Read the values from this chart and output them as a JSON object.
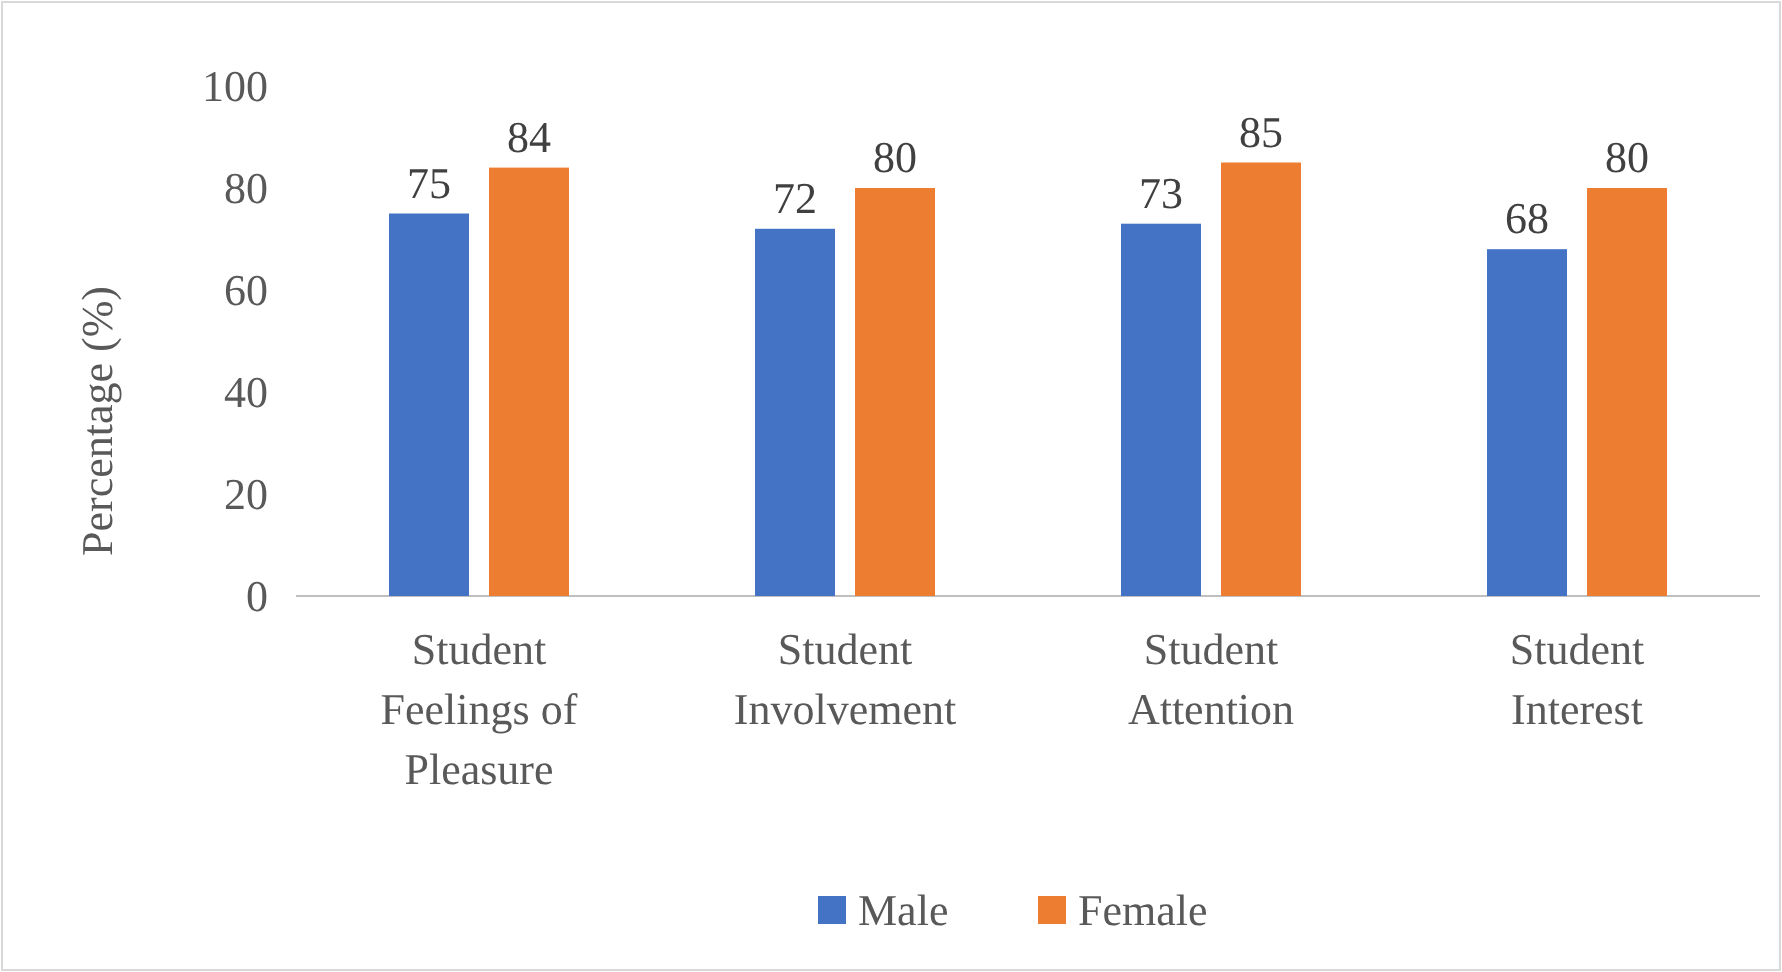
{
  "chart_data": {
    "type": "bar",
    "categories": [
      "Student Feelings of Pleasure",
      "Student Involvement",
      "Student Attention",
      "Student Interest"
    ],
    "series": [
      {
        "name": "Male",
        "color": "#4472c4",
        "values": [
          75,
          72,
          73,
          68
        ]
      },
      {
        "name": "Female",
        "color": "#ed7d31",
        "values": [
          84,
          80,
          85,
          80
        ]
      }
    ],
    "ylabel": "Percentage (%)",
    "ylim": [
      0,
      100
    ],
    "yticks": [
      0,
      20,
      40,
      60,
      80,
      100
    ],
    "grid": false,
    "data_labels": true,
    "legend": "bottom"
  }
}
